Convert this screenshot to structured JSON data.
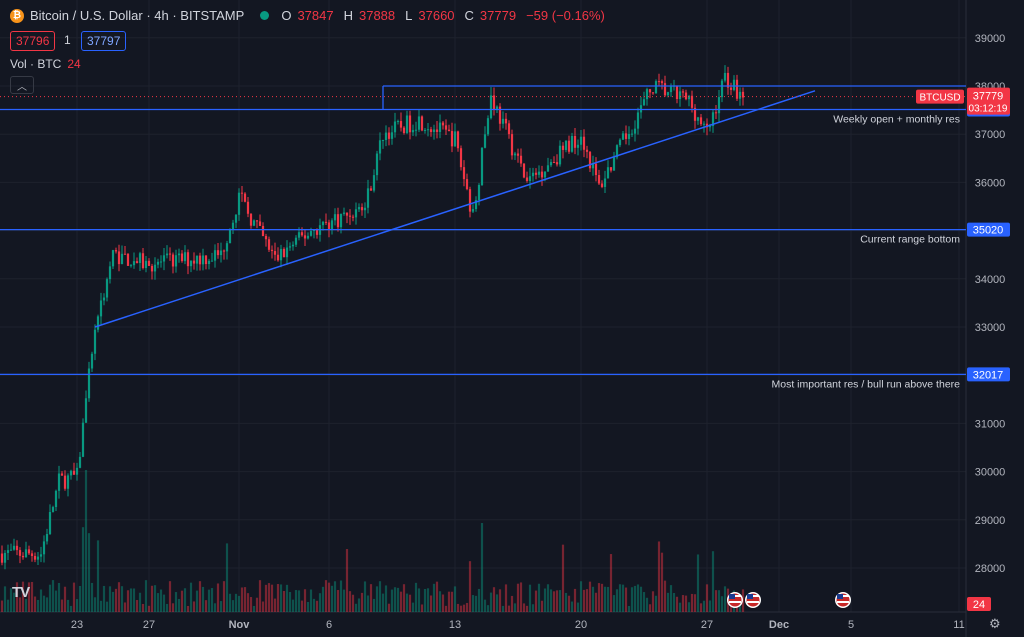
{
  "header": {
    "coin_icon": "bitcoin-icon",
    "title": "Bitcoin / U.S. Dollar · 4h · BITSTAMP",
    "status_icon": "market-open-dot-icon",
    "o_label": "O",
    "o_value": "37847",
    "h_label": "H",
    "h_value": "37888",
    "l_label": "L",
    "l_value": "37660",
    "c_label": "C",
    "c_value": "37779",
    "change": "−59 (−0.16%)"
  },
  "trade": {
    "bid": "37796",
    "qty": "1",
    "ask": "37797"
  },
  "volume": {
    "label": "Vol · BTC",
    "value": "24"
  },
  "colors": {
    "up": "#089981",
    "down": "#f23645",
    "line": "#2962ff",
    "bg": "#131722"
  },
  "chart_data": {
    "type": "candlestick",
    "y_ticks": [
      "39000",
      "38000",
      "37000",
      "36000",
      "35000",
      "34000",
      "33000",
      "32000",
      "31000",
      "30000",
      "29000",
      "28000"
    ],
    "x_ticks": [
      "23",
      "27",
      "Nov",
      "6",
      "13",
      "20",
      "27",
      "Dec",
      "5",
      "11"
    ],
    "ylim": [
      27300,
      39300
    ],
    "price_path": [
      {
        "x": "Oct 21",
        "y": 28300
      },
      {
        "x": "Oct 22",
        "y": 29800
      },
      {
        "x": "Oct 23",
        "y": 29900
      },
      {
        "x": "Oct 24",
        "y": 33000
      },
      {
        "x": "Oct 25",
        "y": 34500
      },
      {
        "x": "Oct 27",
        "y": 34300
      },
      {
        "x": "Oct 31",
        "y": 34500
      },
      {
        "x": "Nov 1",
        "y": 35700
      },
      {
        "x": "Nov 3",
        "y": 34400
      },
      {
        "x": "Nov 5",
        "y": 35000
      },
      {
        "x": "Nov 8",
        "y": 35500
      },
      {
        "x": "Nov 9",
        "y": 37000
      },
      {
        "x": "Nov 11",
        "y": 37300
      },
      {
        "x": "Nov 13",
        "y": 36900
      },
      {
        "x": "Nov 14",
        "y": 35300
      },
      {
        "x": "Nov 15",
        "y": 37800
      },
      {
        "x": "Nov 17",
        "y": 36000
      },
      {
        "x": "Nov 20",
        "y": 37000
      },
      {
        "x": "Nov 21",
        "y": 35900
      },
      {
        "x": "Nov 24",
        "y": 38000
      },
      {
        "x": "Nov 26",
        "y": 37700
      },
      {
        "x": "Nov 27",
        "y": 37000
      },
      {
        "x": "Nov 28",
        "y": 38200
      },
      {
        "x": "Nov 29",
        "y": 37779
      }
    ],
    "horizontal_lines": [
      {
        "price": "37513",
        "label": "Weekly open + monthly res"
      },
      {
        "price": "35020",
        "label": "Current range bottom"
      },
      {
        "price": "32017",
        "label": "Most important res / bull run above there"
      }
    ],
    "top_line": {
      "price": 38000
    },
    "trendline": {
      "from": {
        "x": "Oct 24",
        "y": 33000
      },
      "to": {
        "x": "Dec 3",
        "y": 37900
      }
    },
    "last_price": {
      "symbol": "BTCUSD",
      "value": "37779",
      "countdown": "03:12:19"
    },
    "volume_last": "24"
  },
  "logo": "TV",
  "settings_icon": "gear-icon"
}
